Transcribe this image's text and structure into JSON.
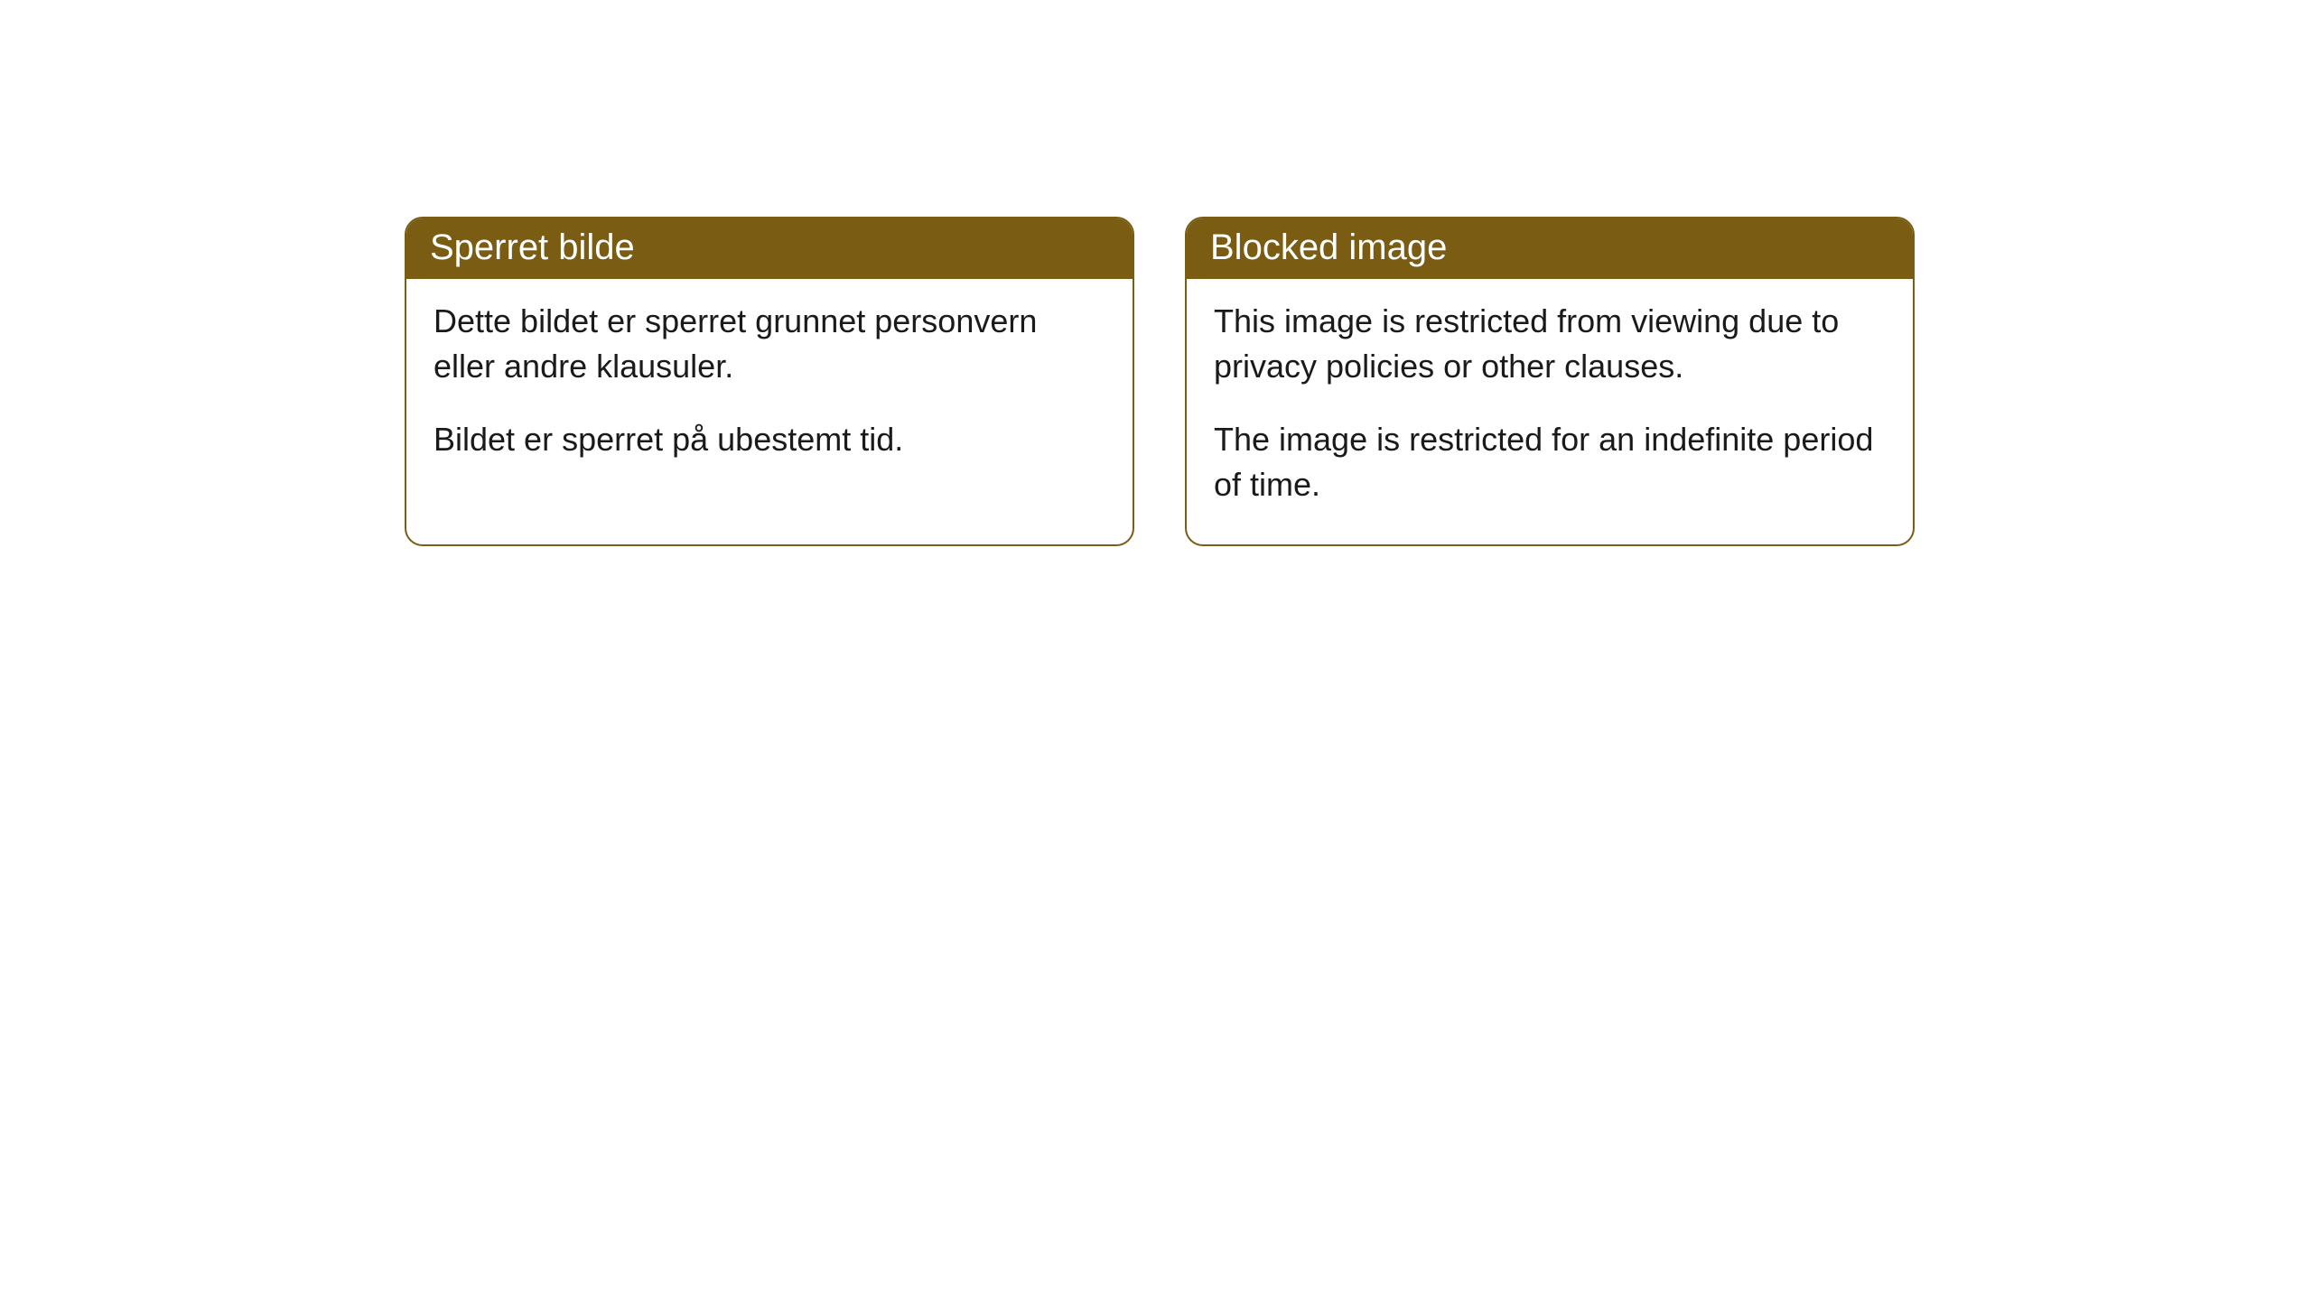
{
  "cards": [
    {
      "title": "Sperret bilde",
      "line1": "Dette bildet er sperret grunnet personvern eller andre klausuler.",
      "line2": "Bildet er sperret på ubestemt tid."
    },
    {
      "title": "Blocked image",
      "line1": "This image is restricted from viewing due to privacy policies or other clauses.",
      "line2": "The image is restricted for an indefinite period of time."
    }
  ],
  "style": {
    "header_background": "#7a5c12",
    "header_text_color": "#ffffff",
    "border_color": "#7a5c12",
    "body_background": "#ffffff",
    "body_text_color": "#1a1a1a",
    "border_radius": 20,
    "header_fontsize": 40,
    "body_fontsize": 36
  }
}
